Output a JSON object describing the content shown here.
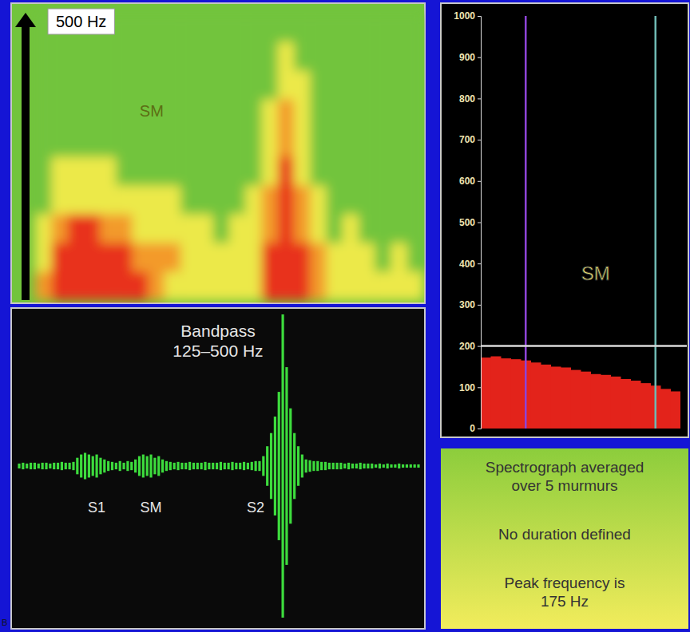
{
  "chart_data": [
    {
      "type": "heatmap",
      "ylim": [
        0,
        500
      ],
      "yticks": [
        {
          "value": 500,
          "label": "500 Hz"
        }
      ],
      "tick_labels": "y",
      "color_range": [
        0,
        3
      ],
      "cells": [
        [
          2,
          3,
          3,
          3,
          3,
          3,
          3,
          2,
          1,
          1,
          1,
          1,
          1,
          1,
          3,
          3,
          3,
          2,
          1,
          1,
          1,
          1,
          1,
          1
        ],
        [
          1,
          3,
          3,
          3,
          3,
          3,
          2,
          2,
          2,
          1,
          1,
          1,
          1,
          1,
          3,
          3,
          3,
          2,
          1,
          1,
          1,
          0,
          1,
          0
        ],
        [
          1,
          2,
          3,
          3,
          2,
          2,
          1,
          1,
          1,
          1,
          1,
          0,
          1,
          1,
          2,
          3,
          2,
          1,
          0,
          1,
          0,
          0,
          0,
          0
        ],
        [
          0,
          1,
          1,
          1,
          1,
          1,
          1,
          1,
          1,
          0,
          0,
          0,
          0,
          1,
          2,
          3,
          2,
          1,
          0,
          0,
          0,
          0,
          0,
          0
        ],
        [
          0,
          1,
          1,
          1,
          1,
          0,
          0,
          0,
          0,
          0,
          0,
          0,
          0,
          0,
          1,
          3,
          1,
          0,
          0,
          0,
          0,
          0,
          0,
          0
        ],
        [
          0,
          0,
          0,
          0,
          0,
          0,
          0,
          0,
          0,
          0,
          0,
          0,
          0,
          0,
          1,
          2,
          1,
          0,
          0,
          0,
          0,
          0,
          0,
          0
        ],
        [
          0,
          0,
          0,
          0,
          0,
          0,
          0,
          0,
          0,
          0,
          0,
          0,
          0,
          0,
          1,
          2,
          1,
          0,
          0,
          0,
          0,
          0,
          0,
          0
        ],
        [
          0,
          0,
          0,
          0,
          0,
          0,
          0,
          0,
          0,
          0,
          0,
          0,
          0,
          0,
          0,
          1,
          1,
          0,
          0,
          0,
          0,
          0,
          0,
          0
        ],
        [
          0,
          0,
          0,
          0,
          0,
          0,
          0,
          0,
          0,
          0,
          0,
          0,
          0,
          0,
          0,
          1,
          0,
          0,
          0,
          0,
          0,
          0,
          0,
          0
        ],
        [
          0,
          0,
          0,
          0,
          0,
          0,
          0,
          0,
          0,
          0,
          0,
          0,
          0,
          0,
          0,
          0,
          0,
          0,
          0,
          0,
          0,
          0,
          0,
          0
        ]
      ],
      "annotations": [
        {
          "text": "SM",
          "x": 7.2,
          "y": 320
        }
      ]
    },
    {
      "type": "waveform",
      "title": "Bandpass 125–500 Hz",
      "color": "#3ddc3d",
      "tick_labels": false,
      "values": [
        0.015,
        0.02,
        0.015,
        0.02,
        0.02,
        0.015,
        0.02,
        0.02,
        0.015,
        0.02,
        0.02,
        0.025,
        0.02,
        0.02,
        0.025,
        0.05,
        0.07,
        0.08,
        0.07,
        0.06,
        0.07,
        0.05,
        0.04,
        0.03,
        0.025,
        0.02,
        0.03,
        0.02,
        0.03,
        0.025,
        0.04,
        0.06,
        0.07,
        0.06,
        0.07,
        0.05,
        0.06,
        0.04,
        0.03,
        0.025,
        0.02,
        0.025,
        0.02,
        0.02,
        0.025,
        0.02,
        0.02,
        0.02,
        0.025,
        0.02,
        0.02,
        0.02,
        0.025,
        0.02,
        0.02,
        0.025,
        0.02,
        0.02,
        0.025,
        0.02,
        0.025,
        0.03,
        0.03,
        0.06,
        0.12,
        0.2,
        0.3,
        0.45,
        0.92,
        0.6,
        0.35,
        0.2,
        0.12,
        0.07,
        0.04,
        0.035,
        0.03,
        0.03,
        0.025,
        0.025,
        0.02,
        0.02,
        0.02,
        0.02,
        0.015,
        0.02,
        0.015,
        0.015,
        0.02,
        0.015,
        0.015,
        0.015,
        0.01,
        0.015,
        0.01,
        0.015,
        0.01,
        0.01,
        0.015,
        0.01,
        0.01,
        0.01,
        0.01,
        0.01
      ],
      "annotations": [
        {
          "text": "S1",
          "x": 20
        },
        {
          "text": "SM",
          "x": 34
        },
        {
          "text": "S2",
          "x": 61
        }
      ]
    },
    {
      "type": "bar",
      "categories": [
        null,
        null,
        null,
        null,
        null,
        null,
        null,
        null,
        null,
        null,
        null,
        null,
        null,
        null,
        null,
        null,
        null,
        null,
        null,
        null
      ],
      "values": [
        172,
        175,
        170,
        168,
        165,
        160,
        155,
        150,
        148,
        142,
        138,
        132,
        130,
        126,
        120,
        116,
        110,
        104,
        96,
        90
      ],
      "color": "#e3231b",
      "ylim": [
        0,
        1000
      ],
      "yticks": [
        0,
        100,
        200,
        300,
        400,
        500,
        600,
        700,
        800,
        900,
        1000
      ],
      "tick_labels": "y",
      "hline": 200,
      "markers": [
        {
          "x": 4,
          "color": "#8e44d8"
        },
        {
          "x": 17,
          "color": "#6fb9b4"
        }
      ],
      "annotations": [
        {
          "text": "SM",
          "x": 11,
          "y": 360
        }
      ]
    }
  ],
  "notes": [
    [
      "Spectrograph averaged",
      "over 5 murmurs"
    ],
    [
      "No duration defined"
    ],
    [
      "Peak frequency is",
      "175 Hz"
    ]
  ],
  "panel_label": "B"
}
